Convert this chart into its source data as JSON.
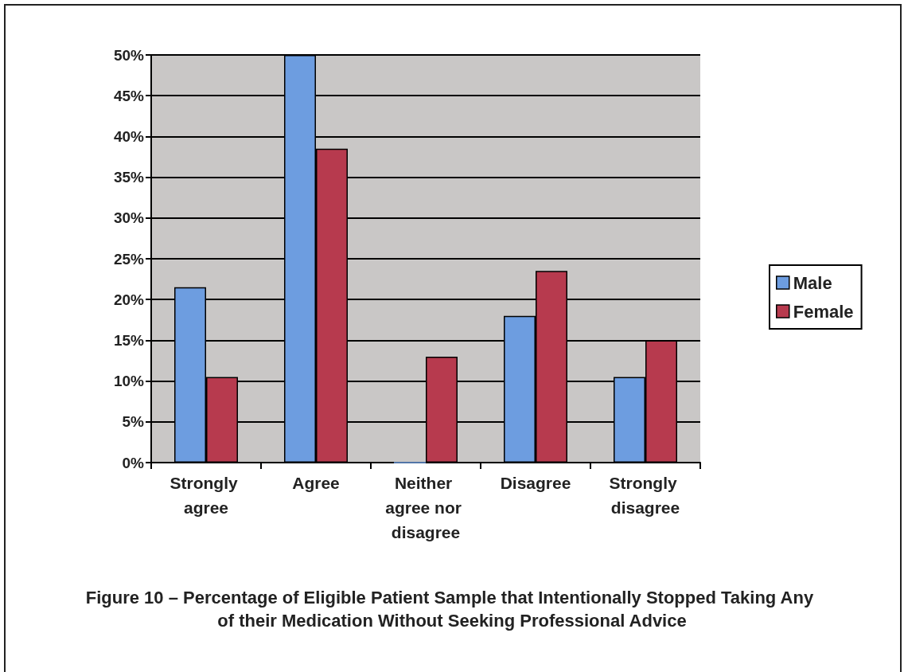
{
  "chart_data": {
    "type": "bar",
    "title": "Figure 10 – Percentage of Eligible Patient Sample that Intentionally Stopped Taking Any of their Medication Without Seeking Professional Advice",
    "categories": [
      "Strongly agree",
      "Agree",
      "Neither agree nor disagree",
      "Disagree",
      "Strongly disagree"
    ],
    "series": [
      {
        "name": "Male",
        "color": "#6d9de0",
        "values": [
          21.5,
          50,
          0,
          18,
          10.5
        ]
      },
      {
        "name": "Female",
        "color": "#b73a4e",
        "values": [
          10.5,
          38.5,
          13,
          23.5,
          15
        ]
      }
    ],
    "ylim": [
      0,
      50
    ],
    "yticks": [
      {
        "value": 0,
        "label": "0%"
      },
      {
        "value": 5,
        "label": "5%"
      },
      {
        "value": 10,
        "label": "10%"
      },
      {
        "value": 15,
        "label": "15%"
      },
      {
        "value": 20,
        "label": "20%"
      },
      {
        "value": 25,
        "label": "25%"
      },
      {
        "value": 30,
        "label": "30%"
      },
      {
        "value": 35,
        "label": "35%"
      },
      {
        "value": 40,
        "label": "40%"
      },
      {
        "value": 45,
        "label": "45%"
      },
      {
        "value": 50,
        "label": "50%"
      }
    ],
    "grid": "y",
    "legend": "right"
  }
}
